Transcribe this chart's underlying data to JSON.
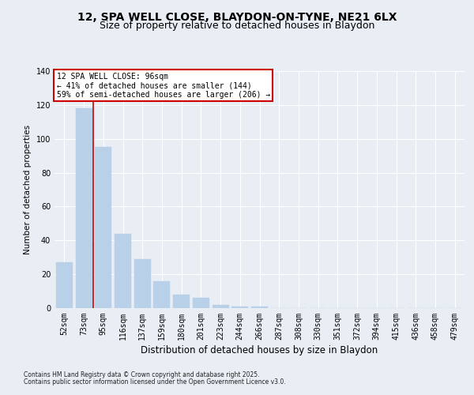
{
  "title_line1": "12, SPA WELL CLOSE, BLAYDON-ON-TYNE, NE21 6LX",
  "title_line2": "Size of property relative to detached houses in Blaydon",
  "xlabel": "Distribution of detached houses by size in Blaydon",
  "ylabel": "Number of detached properties",
  "categories": [
    "52sqm",
    "73sqm",
    "95sqm",
    "116sqm",
    "137sqm",
    "159sqm",
    "180sqm",
    "201sqm",
    "223sqm",
    "244sqm",
    "266sqm",
    "287sqm",
    "308sqm",
    "330sqm",
    "351sqm",
    "372sqm",
    "394sqm",
    "415sqm",
    "436sqm",
    "458sqm",
    "479sqm"
  ],
  "values": [
    27,
    118,
    95,
    44,
    29,
    16,
    8,
    6,
    2,
    1,
    1,
    0,
    0,
    0,
    0,
    0,
    0,
    0,
    0,
    0,
    0
  ],
  "bar_color": "#b8d0e8",
  "bar_edge_color": "#b8d0e8",
  "ylim": [
    0,
    140
  ],
  "yticks": [
    0,
    20,
    40,
    60,
    80,
    100,
    120,
    140
  ],
  "annotation_title": "12 SPA WELL CLOSE: 96sqm",
  "annotation_line2": "← 41% of detached houses are smaller (144)",
  "annotation_line3": "59% of semi-detached houses are larger (206) →",
  "red_line_color": "#cc0000",
  "annotation_box_color": "#cc0000",
  "footer_line1": "Contains HM Land Registry data © Crown copyright and database right 2025.",
  "footer_line2": "Contains public sector information licensed under the Open Government Licence v3.0.",
  "background_color": "#e8eef4",
  "grid_color": "#ffffff",
  "title_fontsize": 10,
  "subtitle_fontsize": 9,
  "axis_label_fontsize": 8.5,
  "tick_fontsize": 7,
  "ylabel_fontsize": 7.5,
  "footer_fontsize": 5.5,
  "annot_fontsize": 7
}
